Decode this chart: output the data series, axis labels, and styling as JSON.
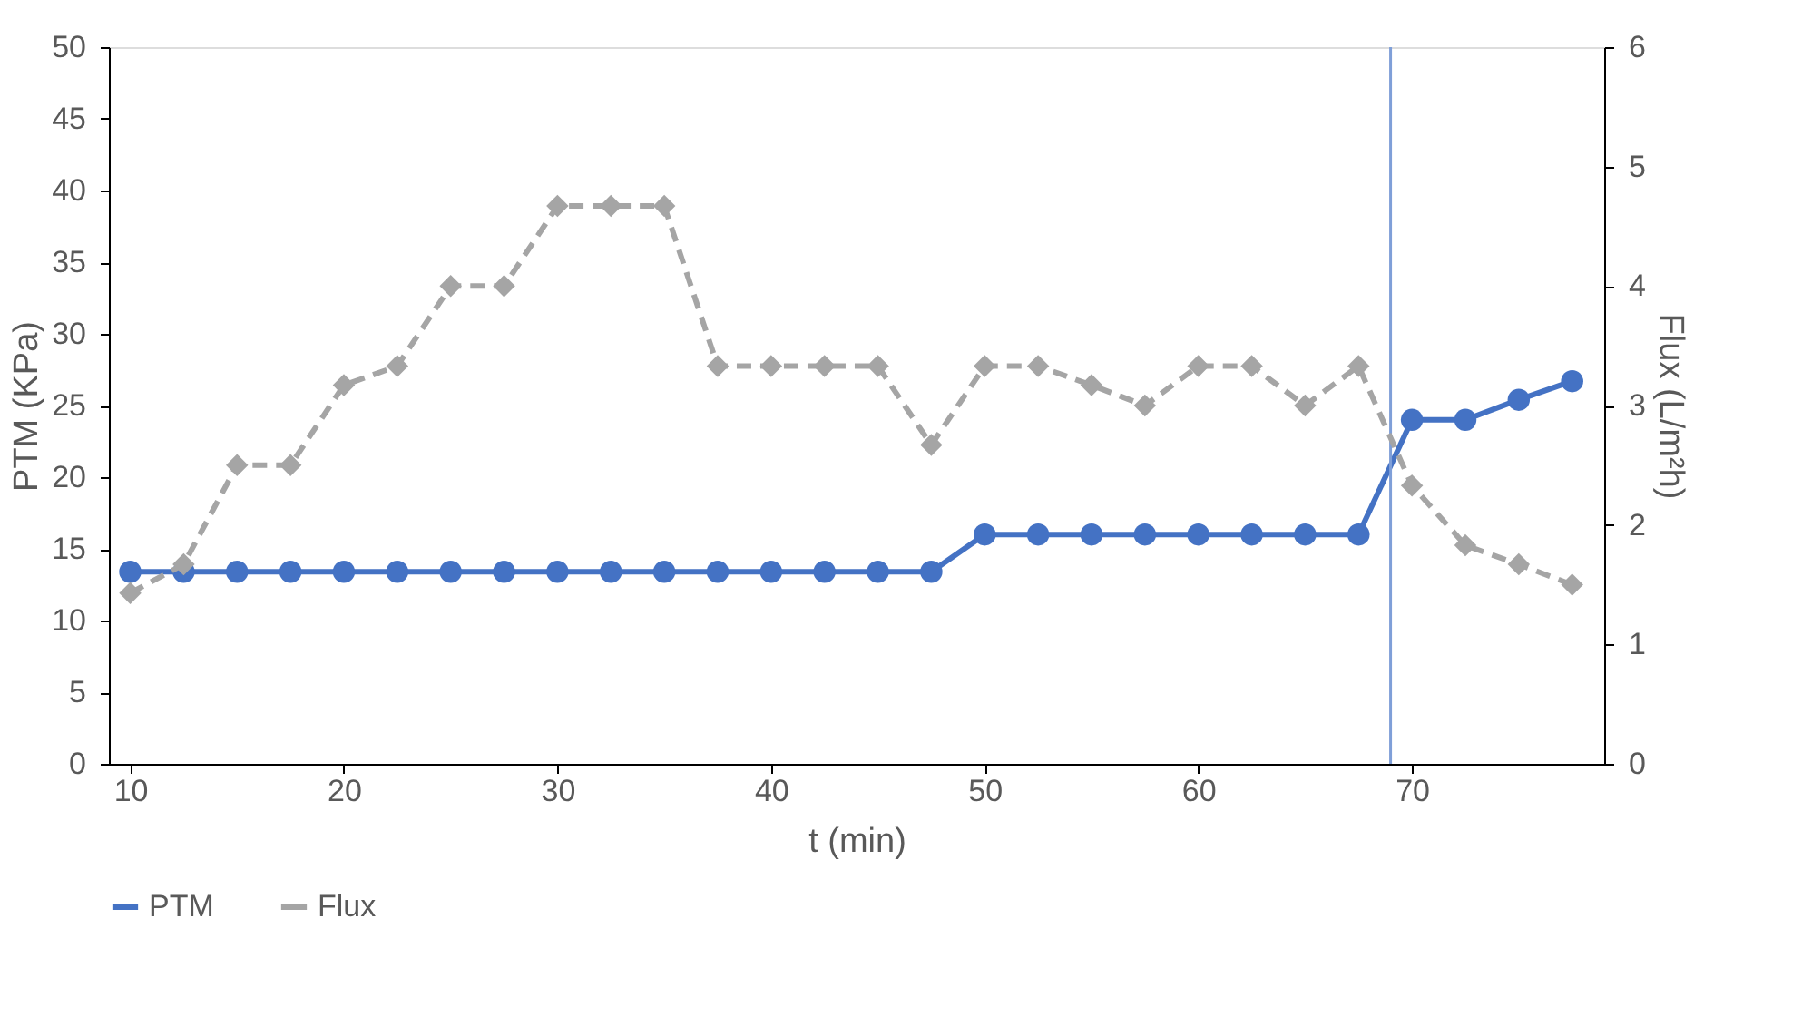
{
  "chart_data": {
    "type": "line",
    "xlabel": "t (min)",
    "ylabel": "PTM (KPa)",
    "y2label": "Flux (L/m²h)",
    "x": [
      10,
      12.5,
      15,
      17.5,
      20,
      22.5,
      25,
      27.5,
      30,
      32.5,
      35,
      37.5,
      40,
      42.5,
      45,
      47.5,
      50,
      52.5,
      55,
      57.5,
      60,
      62.5,
      65,
      67.5,
      70,
      72.5,
      75,
      77.5
    ],
    "series": [
      {
        "name": "PTM",
        "color": "#4472c4",
        "marker": "circle",
        "line_style": "solid",
        "values": [
          13.4,
          13.4,
          13.4,
          13.4,
          13.4,
          13.4,
          13.4,
          13.4,
          13.4,
          13.4,
          13.4,
          13.4,
          13.4,
          13.4,
          13.4,
          13.4,
          16,
          16,
          16,
          16,
          16,
          16,
          16,
          16,
          24,
          24,
          25.4,
          26.7
        ]
      },
      {
        "name": "Flux",
        "color": "#a5a5a5",
        "marker": "diamond",
        "line_style": "dashed",
        "axis": "y2",
        "values": [
          1.43,
          1.67,
          2.5,
          2.5,
          3.17,
          3.33,
          4,
          4,
          4.67,
          4.67,
          4.67,
          3.33,
          3.33,
          3.33,
          3.33,
          2.67,
          3.33,
          3.33,
          3.17,
          3,
          3.33,
          3.33,
          3,
          3.33,
          2.33,
          1.83,
          1.67,
          1.5
        ]
      }
    ],
    "xlim": [
      9,
      79
    ],
    "xticks": [
      10,
      20,
      30,
      40,
      50,
      60,
      70
    ],
    "ylim": [
      0,
      50
    ],
    "yticks": [
      0,
      5,
      10,
      15,
      20,
      25,
      30,
      35,
      40,
      45,
      50
    ],
    "y2lim": [
      0,
      6
    ],
    "y2ticks": [
      0,
      1,
      2,
      3,
      4,
      5,
      6
    ],
    "ref_lines": [
      {
        "axis": "x",
        "value": 69,
        "color": "#7f9fd8",
        "line_style": "solid"
      }
    ],
    "grid": false,
    "legend": "bottom"
  }
}
